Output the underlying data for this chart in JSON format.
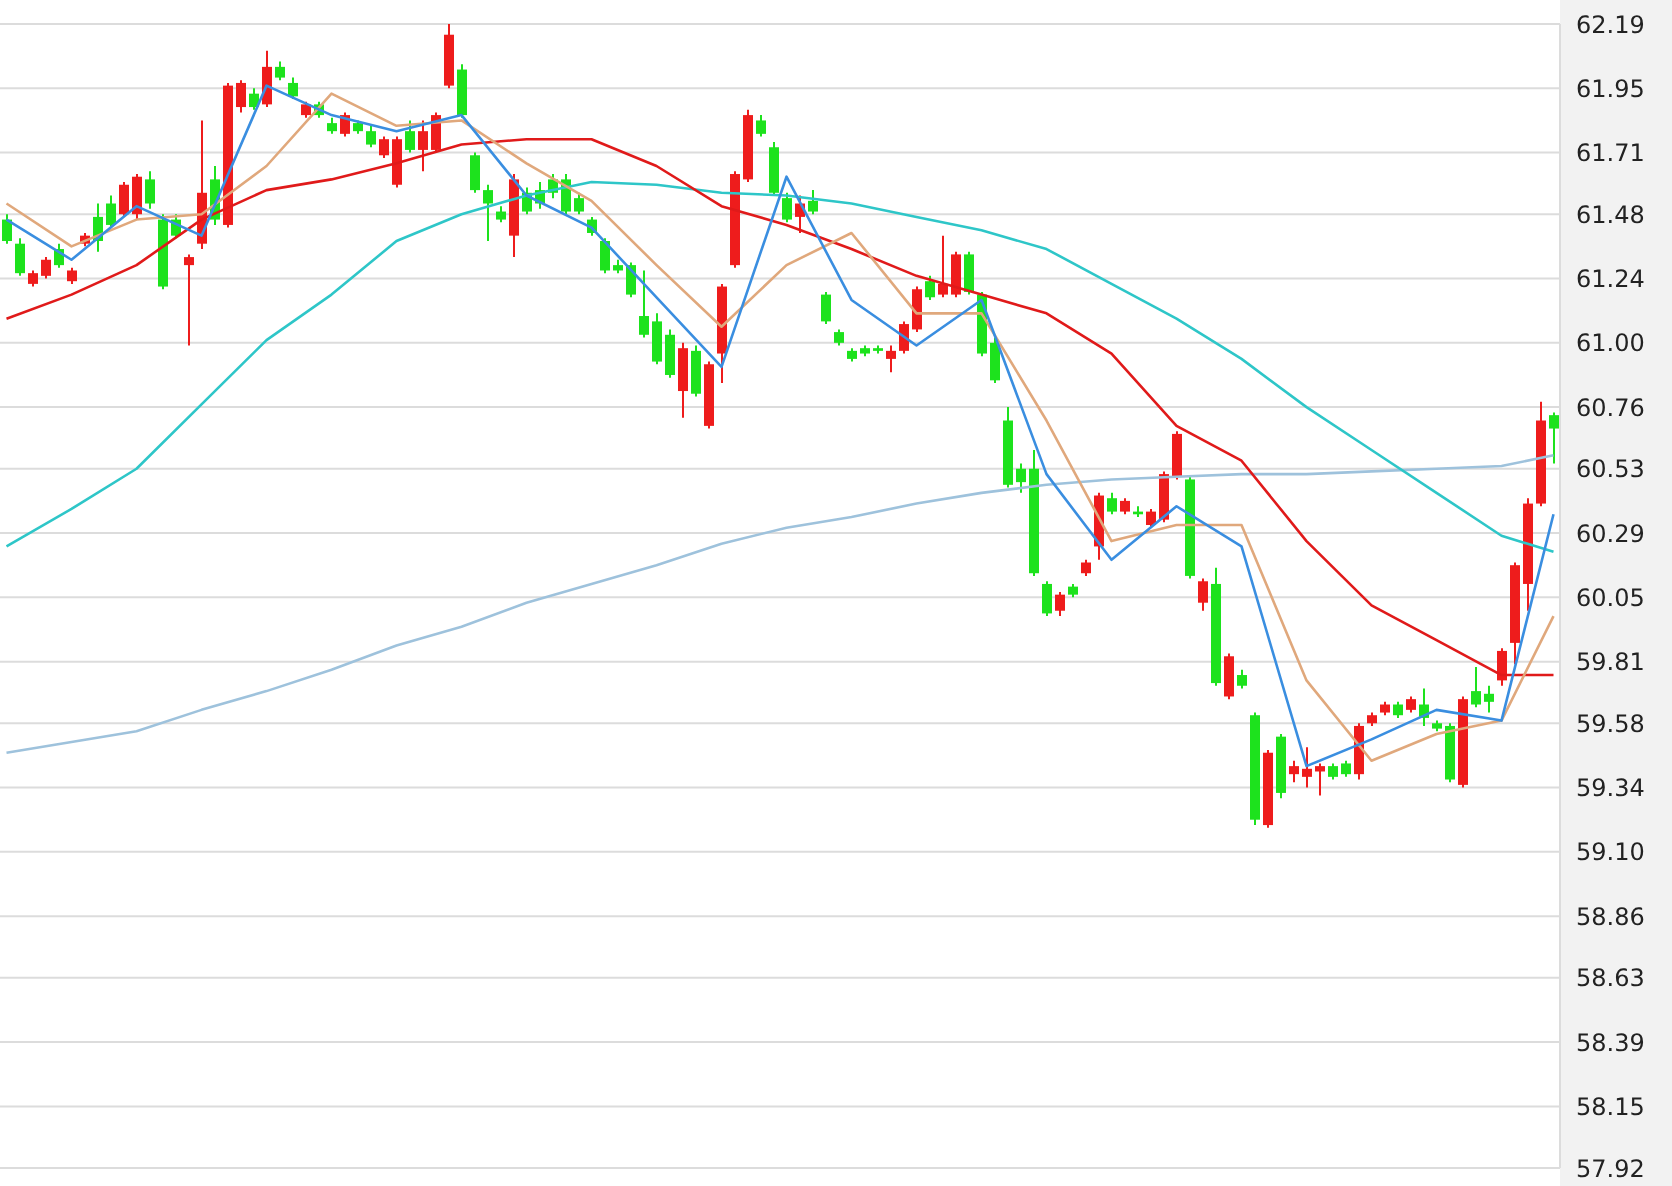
{
  "chart_data": {
    "type": "candlestick",
    "categories": [
      null,
      null,
      null,
      null,
      null,
      null,
      null,
      null,
      null,
      null,
      null,
      null,
      null,
      null,
      null,
      null,
      null,
      null,
      null,
      null,
      null,
      null,
      null,
      null,
      null,
      null,
      null,
      null,
      null,
      null,
      null,
      null,
      null,
      null,
      null,
      null,
      null,
      null,
      null,
      null,
      null,
      null,
      null,
      null,
      null,
      null,
      null,
      null,
      null,
      null,
      null,
      null,
      null,
      null,
      null,
      null,
      null,
      null,
      null,
      null,
      null,
      null,
      null,
      null,
      null,
      null,
      null,
      null,
      null,
      null,
      null,
      null,
      null,
      null,
      null,
      null,
      null,
      null,
      null,
      null,
      null,
      null,
      null,
      null,
      null,
      null,
      null,
      null,
      null,
      null,
      null,
      null,
      null,
      null,
      null,
      null,
      null,
      null,
      null,
      null,
      null,
      null,
      null,
      null,
      null,
      null,
      null,
      null,
      null,
      null,
      null,
      null,
      null,
      null,
      null,
      null,
      null,
      null,
      null,
      null
    ],
    "ohlc": [
      [
        61.46,
        61.48,
        61.37,
        61.38
      ],
      [
        61.37,
        61.39,
        61.25,
        61.26
      ],
      [
        61.22,
        61.27,
        61.21,
        61.26
      ],
      [
        61.25,
        61.32,
        61.24,
        61.31
      ],
      [
        61.35,
        61.37,
        61.28,
        61.29
      ],
      [
        61.23,
        61.28,
        61.22,
        61.27
      ],
      [
        61.37,
        61.41,
        61.36,
        61.4
      ],
      [
        61.47,
        61.52,
        61.34,
        61.38
      ],
      [
        61.52,
        61.55,
        61.43,
        61.44
      ],
      [
        61.48,
        61.6,
        61.47,
        61.59
      ],
      [
        61.48,
        61.63,
        61.46,
        61.62
      ],
      [
        61.61,
        61.64,
        61.5,
        61.52
      ],
      [
        61.46,
        61.48,
        61.2,
        61.21
      ],
      [
        61.46,
        61.48,
        61.39,
        61.4
      ],
      [
        61.29,
        61.33,
        60.99,
        61.32
      ],
      [
        61.37,
        61.83,
        61.35,
        61.56
      ],
      [
        61.61,
        61.66,
        61.44,
        61.46
      ],
      [
        61.44,
        61.97,
        61.43,
        61.96
      ],
      [
        61.88,
        61.98,
        61.86,
        61.97
      ],
      [
        61.93,
        61.95,
        61.87,
        61.88
      ],
      [
        61.89,
        62.09,
        61.88,
        62.03
      ],
      [
        62.03,
        62.05,
        61.98,
        61.99
      ],
      [
        61.97,
        61.99,
        61.91,
        61.92
      ],
      [
        61.85,
        61.9,
        61.84,
        61.89
      ],
      [
        61.89,
        61.9,
        61.84,
        61.85
      ],
      [
        61.82,
        61.84,
        61.78,
        61.79
      ],
      [
        61.78,
        61.86,
        61.77,
        61.85
      ],
      [
        61.82,
        61.83,
        61.78,
        61.79
      ],
      [
        61.79,
        61.81,
        61.73,
        61.74
      ],
      [
        61.7,
        61.77,
        61.69,
        61.76
      ],
      [
        61.59,
        61.77,
        61.58,
        61.76
      ],
      [
        61.79,
        61.83,
        61.71,
        61.72
      ],
      [
        61.72,
        61.83,
        61.64,
        61.79
      ],
      [
        61.72,
        61.86,
        61.71,
        61.85
      ],
      [
        61.96,
        62.19,
        61.95,
        62.15
      ],
      [
        62.02,
        62.04,
        61.84,
        61.85
      ],
      [
        61.7,
        61.71,
        61.56,
        61.57
      ],
      [
        61.57,
        61.59,
        61.38,
        61.52
      ],
      [
        61.49,
        61.51,
        61.45,
        61.46
      ],
      [
        61.4,
        61.63,
        61.32,
        61.61
      ],
      [
        61.56,
        61.58,
        61.48,
        61.49
      ],
      [
        61.57,
        61.6,
        61.5,
        61.52
      ],
      [
        61.61,
        61.63,
        61.54,
        61.56
      ],
      [
        61.61,
        61.63,
        61.48,
        61.49
      ],
      [
        61.54,
        61.56,
        61.48,
        61.49
      ],
      [
        61.46,
        61.47,
        61.4,
        61.41
      ],
      [
        61.38,
        61.39,
        61.26,
        61.27
      ],
      [
        61.29,
        61.31,
        61.26,
        61.27
      ],
      [
        61.29,
        61.3,
        61.17,
        61.18
      ],
      [
        61.1,
        61.27,
        61.02,
        61.03
      ],
      [
        61.08,
        61.11,
        60.92,
        60.93
      ],
      [
        61.03,
        61.05,
        60.87,
        60.88
      ],
      [
        60.82,
        61.0,
        60.72,
        60.98
      ],
      [
        60.97,
        60.99,
        60.8,
        60.81
      ],
      [
        60.69,
        60.93,
        60.68,
        60.92
      ],
      [
        60.96,
        61.22,
        60.85,
        61.21
      ],
      [
        61.29,
        61.64,
        61.28,
        61.63
      ],
      [
        61.61,
        61.87,
        61.6,
        61.85
      ],
      [
        61.83,
        61.85,
        61.77,
        61.78
      ],
      [
        61.73,
        61.75,
        61.55,
        61.56
      ],
      [
        61.54,
        61.56,
        61.45,
        61.46
      ],
      [
        61.47,
        61.55,
        61.41,
        61.52
      ],
      [
        61.53,
        61.57,
        61.48,
        61.49
      ],
      [
        61.18,
        61.19,
        61.07,
        61.08
      ],
      [
        61.04,
        61.05,
        60.99,
        61.0
      ],
      [
        60.97,
        60.98,
        60.93,
        60.94
      ],
      [
        60.98,
        60.99,
        60.95,
        60.96
      ],
      [
        60.98,
        60.99,
        60.96,
        60.97
      ],
      [
        60.94,
        60.99,
        60.89,
        60.97
      ],
      [
        60.97,
        61.08,
        60.96,
        61.07
      ],
      [
        61.05,
        61.21,
        61.04,
        61.2
      ],
      [
        61.23,
        61.25,
        61.16,
        61.17
      ],
      [
        61.18,
        61.4,
        61.17,
        61.22
      ],
      [
        61.18,
        61.34,
        61.17,
        61.33
      ],
      [
        61.33,
        61.34,
        61.18,
        61.19
      ],
      [
        61.18,
        61.19,
        60.95,
        60.96
      ],
      [
        61.0,
        61.02,
        60.85,
        60.86
      ],
      [
        60.71,
        60.76,
        60.46,
        60.47
      ],
      [
        60.53,
        60.55,
        60.44,
        60.48
      ],
      [
        60.53,
        60.6,
        60.13,
        60.14
      ],
      [
        60.1,
        60.11,
        59.98,
        59.99
      ],
      [
        60.0,
        60.07,
        59.98,
        60.06
      ],
      [
        60.09,
        60.1,
        60.05,
        60.06
      ],
      [
        60.14,
        60.19,
        60.13,
        60.18
      ],
      [
        60.24,
        60.44,
        60.19,
        60.43
      ],
      [
        60.42,
        60.44,
        60.36,
        60.37
      ],
      [
        60.37,
        60.42,
        60.36,
        60.41
      ],
      [
        60.37,
        60.39,
        60.35,
        60.36
      ],
      [
        60.32,
        60.38,
        60.31,
        60.37
      ],
      [
        60.34,
        60.52,
        60.33,
        60.51
      ],
      [
        60.5,
        60.67,
        60.49,
        60.66
      ],
      [
        60.49,
        60.5,
        60.12,
        60.13
      ],
      [
        60.03,
        60.12,
        60.0,
        60.11
      ],
      [
        60.1,
        60.16,
        59.72,
        59.73
      ],
      [
        59.68,
        59.84,
        59.67,
        59.83
      ],
      [
        59.76,
        59.78,
        59.71,
        59.72
      ],
      [
        59.61,
        59.62,
        59.2,
        59.22
      ],
      [
        59.2,
        59.48,
        59.19,
        59.47
      ],
      [
        59.53,
        59.54,
        59.3,
        59.32
      ],
      [
        59.39,
        59.44,
        59.36,
        59.42
      ],
      [
        59.38,
        59.49,
        59.34,
        59.41
      ],
      [
        59.4,
        59.43,
        59.31,
        59.42
      ],
      [
        59.42,
        59.43,
        59.37,
        59.38
      ],
      [
        59.43,
        59.44,
        59.38,
        59.39
      ],
      [
        59.39,
        59.58,
        59.37,
        59.57
      ],
      [
        59.58,
        59.62,
        59.57,
        59.61
      ],
      [
        59.62,
        59.66,
        59.61,
        59.65
      ],
      [
        59.65,
        59.66,
        59.6,
        59.61
      ],
      [
        59.63,
        59.68,
        59.62,
        59.67
      ],
      [
        59.65,
        59.71,
        59.57,
        59.6
      ],
      [
        59.58,
        59.59,
        59.55,
        59.56
      ],
      [
        59.57,
        59.58,
        59.36,
        59.37
      ],
      [
        59.35,
        59.68,
        59.34,
        59.67
      ],
      [
        59.7,
        59.79,
        59.64,
        59.65
      ],
      [
        59.69,
        59.72,
        59.62,
        59.66
      ],
      [
        59.74,
        59.86,
        59.72,
        59.85
      ],
      [
        59.88,
        60.18,
        59.8,
        60.17
      ],
      [
        60.1,
        60.42,
        60.0,
        60.4
      ],
      [
        60.4,
        60.78,
        60.39,
        60.71
      ],
      [
        60.73,
        60.74,
        60.55,
        60.68
      ]
    ],
    "series": [
      {
        "type": "line",
        "color": "#9ec2dc",
        "values": [
          59.47,
          null,
          null,
          null,
          null,
          59.51,
          null,
          null,
          null,
          null,
          59.55,
          null,
          null,
          null,
          null,
          59.63,
          null,
          null,
          null,
          null,
          59.7,
          null,
          null,
          null,
          null,
          59.78,
          null,
          null,
          null,
          null,
          59.87,
          null,
          null,
          null,
          null,
          59.94,
          null,
          null,
          null,
          null,
          60.03,
          null,
          null,
          null,
          null,
          60.1,
          null,
          null,
          null,
          null,
          60.17,
          null,
          null,
          null,
          null,
          60.25,
          null,
          null,
          null,
          null,
          60.31,
          null,
          null,
          null,
          null,
          60.35,
          null,
          null,
          null,
          null,
          60.4,
          null,
          null,
          null,
          null,
          60.44,
          null,
          null,
          null,
          null,
          60.47,
          null,
          null,
          null,
          null,
          60.49,
          null,
          null,
          null,
          null,
          60.5,
          null,
          null,
          null,
          null,
          60.51,
          null,
          null,
          null,
          null,
          60.51,
          null,
          null,
          null,
          null,
          60.52,
          null,
          null,
          null,
          null,
          60.53,
          null,
          null,
          null,
          null,
          60.54,
          null,
          null,
          null,
          60.58
        ]
      },
      {
        "type": "line",
        "color": "#2ec6c8",
        "values": [
          60.24,
          null,
          null,
          null,
          null,
          60.38,
          null,
          null,
          null,
          null,
          60.53,
          null,
          null,
          null,
          null,
          60.77,
          null,
          null,
          null,
          null,
          61.01,
          null,
          null,
          null,
          null,
          61.18,
          null,
          null,
          null,
          null,
          61.38,
          null,
          null,
          null,
          null,
          61.48,
          null,
          null,
          null,
          null,
          61.55,
          null,
          null,
          null,
          null,
          61.6,
          null,
          null,
          null,
          null,
          61.59,
          null,
          null,
          null,
          null,
          61.56,
          null,
          null,
          null,
          null,
          61.55,
          null,
          null,
          null,
          null,
          61.52,
          null,
          null,
          null,
          null,
          61.47,
          null,
          null,
          null,
          null,
          61.42,
          null,
          null,
          null,
          null,
          61.35,
          null,
          null,
          null,
          null,
          61.22,
          null,
          null,
          null,
          null,
          61.09,
          null,
          null,
          null,
          null,
          60.94,
          null,
          null,
          null,
          null,
          60.76,
          null,
          null,
          null,
          null,
          60.6,
          null,
          null,
          null,
          null,
          60.44,
          null,
          null,
          null,
          null,
          60.28,
          null,
          null,
          null,
          60.22
        ]
      },
      {
        "type": "line",
        "color": "#e01a1a",
        "values": [
          61.09,
          null,
          null,
          null,
          null,
          61.18,
          null,
          null,
          null,
          null,
          61.29,
          null,
          null,
          null,
          null,
          61.46,
          null,
          null,
          null,
          null,
          61.57,
          null,
          null,
          null,
          null,
          61.61,
          null,
          null,
          null,
          null,
          61.67,
          null,
          null,
          null,
          null,
          61.74,
          null,
          null,
          null,
          null,
          61.76,
          null,
          null,
          null,
          null,
          61.76,
          null,
          null,
          null,
          null,
          61.66,
          null,
          null,
          null,
          null,
          61.51,
          null,
          null,
          null,
          null,
          61.44,
          null,
          null,
          null,
          null,
          61.35,
          null,
          null,
          null,
          null,
          61.25,
          null,
          null,
          null,
          null,
          61.18,
          null,
          null,
          null,
          null,
          61.11,
          null,
          null,
          null,
          null,
          60.96,
          null,
          null,
          null,
          null,
          60.69,
          null,
          null,
          null,
          null,
          60.56,
          null,
          null,
          null,
          null,
          60.26,
          null,
          null,
          null,
          null,
          60.02,
          null,
          null,
          null,
          null,
          59.89,
          null,
          null,
          null,
          null,
          59.76,
          null,
          null,
          null,
          59.76
        ]
      },
      {
        "type": "line",
        "color": "#e0a87c",
        "values": [
          61.52,
          null,
          null,
          null,
          null,
          61.36,
          null,
          null,
          null,
          null,
          61.46,
          null,
          null,
          null,
          null,
          61.48,
          null,
          null,
          null,
          null,
          61.66,
          null,
          null,
          null,
          null,
          61.93,
          null,
          null,
          null,
          null,
          61.81,
          null,
          null,
          null,
          null,
          61.83,
          null,
          null,
          null,
          null,
          61.67,
          null,
          null,
          null,
          null,
          61.53,
          null,
          null,
          null,
          null,
          61.29,
          null,
          null,
          null,
          null,
          61.06,
          null,
          null,
          null,
          null,
          61.29,
          null,
          null,
          null,
          null,
          61.41,
          null,
          null,
          null,
          null,
          61.11,
          null,
          null,
          null,
          null,
          61.11,
          null,
          null,
          null,
          null,
          60.71,
          null,
          null,
          null,
          null,
          60.26,
          null,
          null,
          null,
          null,
          60.32,
          null,
          null,
          null,
          null,
          60.32,
          null,
          null,
          null,
          null,
          59.74,
          null,
          null,
          null,
          null,
          59.44,
          null,
          null,
          null,
          null,
          59.54,
          null,
          null,
          null,
          null,
          59.59,
          null,
          null,
          null,
          59.98
        ]
      },
      {
        "type": "line",
        "color": "#3a8ee0",
        "values": [
          61.46,
          null,
          null,
          null,
          null,
          61.31,
          null,
          null,
          null,
          null,
          61.51,
          null,
          null,
          null,
          null,
          61.4,
          null,
          null,
          null,
          null,
          61.96,
          null,
          null,
          null,
          null,
          61.85,
          null,
          null,
          null,
          null,
          61.79,
          null,
          null,
          null,
          null,
          61.85,
          null,
          null,
          null,
          null,
          61.55,
          null,
          null,
          null,
          null,
          61.43,
          null,
          null,
          null,
          null,
          61.17,
          null,
          null,
          null,
          null,
          60.91,
          null,
          null,
          null,
          null,
          61.62,
          null,
          null,
          null,
          null,
          61.16,
          null,
          null,
          null,
          null,
          60.99,
          null,
          null,
          null,
          null,
          61.16,
          null,
          null,
          null,
          null,
          60.51,
          null,
          null,
          null,
          null,
          60.19,
          null,
          null,
          null,
          null,
          60.39,
          null,
          null,
          null,
          null,
          60.24,
          null,
          null,
          null,
          null,
          59.42,
          null,
          null,
          null,
          null,
          59.52,
          null,
          null,
          null,
          null,
          59.63,
          null,
          null,
          null,
          null,
          59.59,
          null,
          null,
          null,
          60.36
        ]
      }
    ],
    "ylim": [
      57.92,
      62.19
    ],
    "yticks": [
      57.92,
      58.15,
      58.39,
      58.63,
      58.86,
      {
        "value": 59.1,
        "label": "59.10"
      },
      59.34,
      59.58,
      59.81,
      60.05,
      60.29,
      60.53,
      60.76,
      {
        "value": 61,
        "label": "61.00"
      },
      61.24,
      61.48,
      61.71,
      61.95,
      62.19
    ],
    "grid": "y"
  }
}
